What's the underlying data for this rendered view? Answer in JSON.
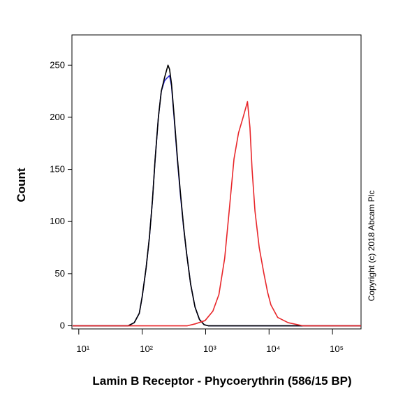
{
  "chart_data": {
    "type": "line",
    "x_label": "Lamin B Receptor - Phycoerythrin (586/15 BP)",
    "y_label": "Count",
    "annotation": "Copyright (c) 2018 Abcam Plc",
    "xscale": "log",
    "xlim": [
      7.8,
      282000
    ],
    "ylim": [
      -3,
      279
    ],
    "xticks": [
      {
        "value": 10,
        "label": "10¹"
      },
      {
        "value": 100,
        "label": "10²"
      },
      {
        "value": 1000,
        "label": "10³"
      },
      {
        "value": 10000,
        "label": "10⁴"
      },
      {
        "value": 100000,
        "label": "10⁵"
      }
    ],
    "yticks": [
      0,
      50,
      100,
      150,
      200,
      250
    ],
    "series": [
      {
        "color": "#2a2ad0",
        "x": [
          8,
          60,
          75,
          90,
          100,
          115,
          130,
          145,
          160,
          180,
          200,
          225,
          240,
          270,
          290,
          320,
          360,
          400,
          450,
          500,
          580,
          680,
          800,
          950,
          1100,
          282000
        ],
        "y": [
          0,
          0,
          3,
          12,
          28,
          55,
          85,
          120,
          160,
          200,
          225,
          235,
          237,
          240,
          230,
          198,
          158,
          126,
          94,
          70,
          40,
          18,
          6,
          1,
          0,
          0
        ]
      },
      {
        "color": "#000000",
        "x": [
          8,
          60,
          75,
          90,
          100,
          115,
          130,
          145,
          160,
          180,
          200,
          225,
          255,
          270,
          290,
          320,
          360,
          400,
          450,
          500,
          580,
          680,
          800,
          950,
          1100,
          282000
        ],
        "y": [
          0,
          0,
          3,
          12,
          28,
          55,
          85,
          120,
          160,
          200,
          225,
          238,
          250,
          246,
          232,
          200,
          160,
          128,
          95,
          70,
          40,
          18,
          6,
          1,
          0,
          0
        ]
      },
      {
        "color": "#e8262a",
        "x": [
          8,
          515,
          700,
          980,
          1300,
          1620,
          2000,
          2350,
          2800,
          3300,
          3900,
          4570,
          5000,
          5400,
          6000,
          7000,
          8300,
          9500,
          10700,
          13700,
          20000,
          34000,
          282000
        ],
        "y": [
          0,
          0,
          2,
          5,
          14,
          30,
          65,
          110,
          160,
          185,
          200,
          215,
          190,
          150,
          110,
          75,
          50,
          32,
          20,
          8,
          3,
          0,
          0
        ]
      }
    ]
  }
}
